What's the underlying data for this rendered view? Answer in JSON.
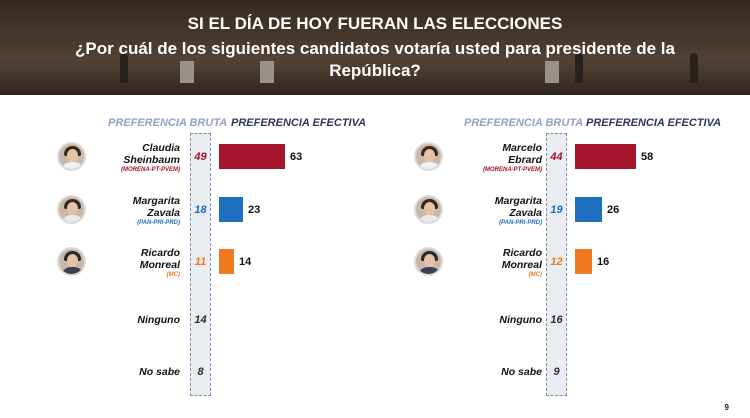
{
  "header": {
    "title": "SI EL DÍA DE HOY FUERAN LAS ELECCIONES",
    "question": "¿Por cuál de los siguientes candidatos votaría usted para presidente de la República?"
  },
  "colors": {
    "morena": "#a5152c",
    "pan": "#1f6fbf",
    "mc": "#f07a22",
    "neutral": "#2b2f3a"
  },
  "page_number": "9",
  "chart_data": [
    {
      "type": "bar",
      "column_labels": {
        "bruta": "PREFERENCIA BRUTA",
        "efectiva": "PREFERENCIA EFECTIVA"
      },
      "rows": [
        {
          "name_line1": "Claudia",
          "name_line2": "Sheinbaum",
          "party": "(MORENA-PT-PVEM)",
          "bruta": 49,
          "efectiva": 63,
          "color": "#a5152c",
          "icon": "person-avatar-sheinbaum-icon"
        },
        {
          "name_line1": "Margarita",
          "name_line2": "Zavala",
          "party": "(PAN-PRI-PRD)",
          "bruta": 18,
          "efectiva": 23,
          "color": "#1f6fbf",
          "icon": "person-avatar-zavala-icon"
        },
        {
          "name_line1": "Ricardo",
          "name_line2": "Monreal",
          "party": "(MC)",
          "bruta": 11,
          "efectiva": 14,
          "color": "#f07a22",
          "icon": "person-avatar-monreal-icon"
        },
        {
          "name_line1": "Ninguno",
          "name_line2": "",
          "party": "",
          "bruta": 14,
          "efectiva": null,
          "color": "#2b2f3a",
          "icon": ""
        },
        {
          "name_line1": "No sabe",
          "name_line2": "",
          "party": "",
          "bruta": 8,
          "efectiva": null,
          "color": "#2b2f3a",
          "icon": ""
        }
      ]
    },
    {
      "type": "bar",
      "column_labels": {
        "bruta": "PREFERENCIA BRUTA",
        "efectiva": "PREFERENCIA EFECTIVA"
      },
      "rows": [
        {
          "name_line1": "Marcelo",
          "name_line2": "Ebrard",
          "party": "(MORENA-PT-PVEM)",
          "bruta": 44,
          "efectiva": 58,
          "color": "#a5152c",
          "icon": "person-avatar-ebrard-icon"
        },
        {
          "name_line1": "Margarita",
          "name_line2": "Zavala",
          "party": "(PAN-PRI-PRD)",
          "bruta": 19,
          "efectiva": 26,
          "color": "#1f6fbf",
          "icon": "person-avatar-zavala-icon"
        },
        {
          "name_line1": "Ricardo",
          "name_line2": "Monreal",
          "party": "(MC)",
          "bruta": 12,
          "efectiva": 16,
          "color": "#f07a22",
          "icon": "person-avatar-monreal-icon"
        },
        {
          "name_line1": "Ninguno",
          "name_line2": "",
          "party": "",
          "bruta": 16,
          "efectiva": null,
          "color": "#2b2f3a",
          "icon": ""
        },
        {
          "name_line1": "No sabe",
          "name_line2": "",
          "party": "",
          "bruta": 9,
          "efectiva": null,
          "color": "#2b2f3a",
          "icon": ""
        }
      ]
    }
  ]
}
